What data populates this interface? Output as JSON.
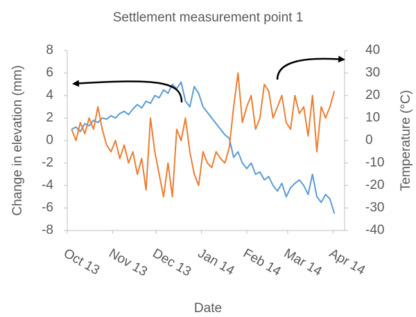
{
  "chart_data": {
    "type": "line",
    "title": "Settlement measurement point 1",
    "xlabel": "Date",
    "ylabel": "Change in elevation (mm)",
    "y2label": "Temperature (°C)",
    "xlim": [
      0,
      190
    ],
    "xticks": [
      {
        "value": 0,
        "label": "Oct 13"
      },
      {
        "value": 31,
        "label": "Nov 13"
      },
      {
        "value": 61,
        "label": "Dec 13"
      },
      {
        "value": 92,
        "label": "Jan 14"
      },
      {
        "value": 123,
        "label": "Feb 14"
      },
      {
        "value": 151,
        "label": "Mar 14"
      },
      {
        "value": 182,
        "label": "Apr 14"
      }
    ],
    "ylim": [
      -8,
      8
    ],
    "yticks": [
      -8,
      -6,
      -4,
      -2,
      0,
      2,
      4,
      6,
      8
    ],
    "y2lim": [
      -40,
      40
    ],
    "y2ticks": [
      -40,
      -30,
      -20,
      -10,
      0,
      10,
      20,
      30,
      40
    ],
    "x": [
      3,
      6,
      9,
      12,
      15,
      18,
      21,
      24,
      27,
      30,
      33,
      36,
      39,
      42,
      45,
      48,
      51,
      54,
      57,
      60,
      63,
      66,
      69,
      72,
      75,
      78,
      81,
      84,
      87,
      90,
      93,
      96,
      99,
      102,
      105,
      108,
      111,
      114,
      117,
      120,
      123,
      126,
      129,
      132,
      135,
      138,
      141,
      144,
      147,
      150,
      153,
      156,
      159,
      162,
      165,
      168,
      171,
      174,
      177,
      180,
      183
    ],
    "series": [
      {
        "name": "Change in elevation",
        "color": "#5b9bd5",
        "axis": "y",
        "values": [
          1.0,
          1.2,
          0.8,
          1.5,
          1.3,
          1.8,
          1.6,
          2.0,
          1.9,
          2.2,
          2.0,
          2.4,
          2.6,
          2.3,
          2.8,
          3.2,
          2.9,
          3.5,
          3.3,
          4.0,
          3.8,
          4.5,
          4.2,
          5.0,
          4.6,
          5.2,
          3.5,
          3.0,
          4.8,
          4.2,
          3.0,
          2.5,
          2.0,
          1.5,
          1.0,
          0.5,
          0.2,
          -1.5,
          -1.0,
          -2.0,
          -2.5,
          -2.0,
          -3.0,
          -2.8,
          -3.5,
          -3.2,
          -4.0,
          -4.5,
          -3.8,
          -5.0,
          -4.2,
          -3.8,
          -3.5,
          -4.0,
          -4.8,
          -3.0,
          -5.0,
          -5.5,
          -4.8,
          -5.2,
          -6.5
        ]
      },
      {
        "name": "Temperature",
        "color": "#ed7d31",
        "axis": "y2",
        "values": [
          5,
          0,
          8,
          3,
          10,
          5,
          15,
          5,
          -2,
          -5,
          0,
          -8,
          -2,
          -10,
          -5,
          -15,
          -8,
          -22,
          10,
          -5,
          -15,
          -25,
          -10,
          -25,
          5,
          0,
          10,
          -5,
          -15,
          -20,
          -5,
          -10,
          -12,
          -5,
          -8,
          -10,
          -3,
          15,
          30,
          8,
          15,
          20,
          5,
          10,
          25,
          22,
          10,
          15,
          20,
          8,
          5,
          20,
          12,
          15,
          2,
          20,
          -5,
          15,
          10,
          15,
          22
        ]
      }
    ]
  }
}
